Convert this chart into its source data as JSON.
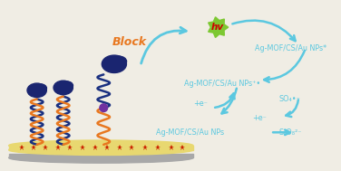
{
  "bg_color": "#f0ede4",
  "electrode_color": "#a8a8a8",
  "electrode_top_color": "#e8d870",
  "red_star_color": "#cc2200",
  "orange_coil_color": "#e87820",
  "blue_coil_color": "#1a3080",
  "dark_blue_blob_color": "#1a2570",
  "purple_dot_color": "#7030a0",
  "arrow_color": "#5bc8e0",
  "block_text_color": "#e87820",
  "hv_bg_color": "#7dc832",
  "hv_text_color": "#cc0000",
  "label_color": "#5bc8e0",
  "label_texts": {
    "block": "Block",
    "hv": "hv",
    "np_excited": "Ag-MOF/CS/Au NPs*",
    "np_radical": "Ag-MOF/CS/Au NPs⁺•",
    "np_ground": "Ag-MOF/CS/Au NPs",
    "plus_e1": "+e⁻",
    "plus_e2": "+e⁻",
    "so4": "SO₄•⁻",
    "s2o8": "S₂O₈²⁻"
  }
}
